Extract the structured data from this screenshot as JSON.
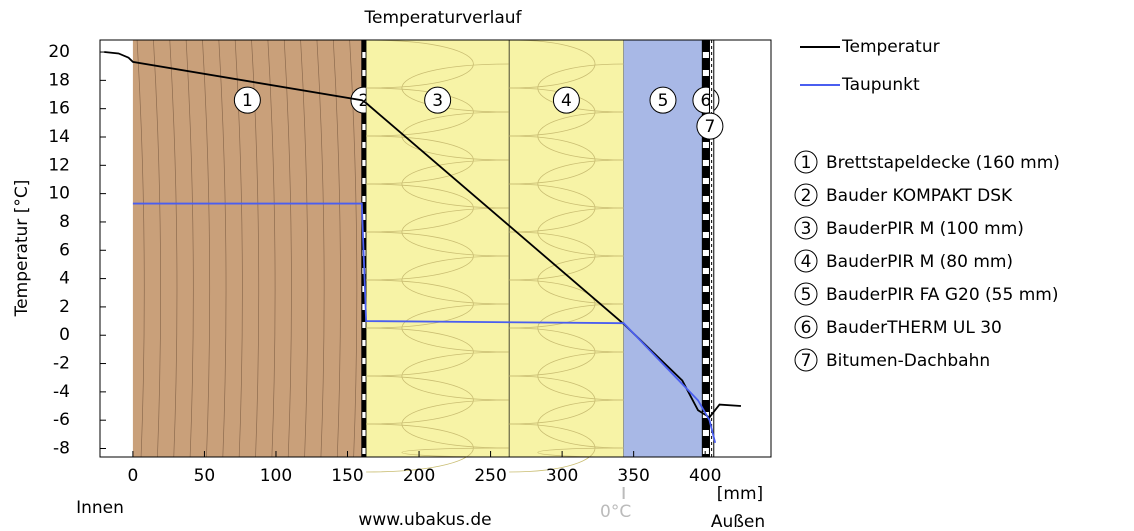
{
  "chart_data": {
    "type": "line",
    "title": "Temperaturverlauf",
    "y_label": "Temperatur [°C]",
    "x_unit": "[mm]",
    "inside_label": "Innen",
    "outside_label": "Außen",
    "footer": "www.ubakus.de",
    "zero_marker": {
      "text": "0°C",
      "x": 343
    },
    "xlim": [
      -23,
      446
    ],
    "ylim": [
      -8.6,
      20.85
    ],
    "xticks": [
      0,
      50,
      100,
      150,
      200,
      250,
      300,
      350,
      400
    ],
    "yticks": [
      -8,
      -6,
      -4,
      -2,
      0,
      2,
      4,
      6,
      8,
      10,
      12,
      14,
      16,
      18,
      20
    ],
    "series": [
      {
        "name": "Temperatur",
        "color": "#000000",
        "x": [
          -20,
          -10,
          -3,
          0,
          160,
          163,
          343,
          384,
          395,
          403,
          410,
          425
        ],
        "values": [
          20,
          19.9,
          19.6,
          19.3,
          16.6,
          16.4,
          0.8,
          -3.2,
          -5.3,
          -5.8,
          -4.9,
          -5.0
        ]
      },
      {
        "name": "Taupunkt",
        "color": "#4a5ef0",
        "x": [
          0,
          160,
          163,
          343,
          395,
          403,
          407
        ],
        "values": [
          9.3,
          9.3,
          1.0,
          0.85,
          -4.6,
          -6.0,
          -7.6
        ]
      }
    ],
    "layers": [
      {
        "label": "1",
        "name": "Brettstapeldecke (160 mm)",
        "x0": 0,
        "x1": 160,
        "color": "#c9a07a",
        "style": "solid"
      },
      {
        "label": "2",
        "name": "Bauder KOMPAKT DSK",
        "x0": 160,
        "x1": 163,
        "color": "#000000",
        "style": "dashed"
      },
      {
        "label": "3",
        "name": "BauderPIR M (100 mm)",
        "x0": 163,
        "x1": 263,
        "color": "#f7f3a6",
        "style": "solid"
      },
      {
        "label": "4",
        "name": "BauderPIR M (80 mm)",
        "x0": 263,
        "x1": 343,
        "color": "#f7f3a6",
        "style": "solid"
      },
      {
        "label": "5",
        "name": "BauderPIR FA G20 (55 mm)",
        "x0": 343,
        "x1": 398,
        "color": "#a8b8e6",
        "style": "solid"
      },
      {
        "label": "6",
        "name": "BauderTHERM UL 30",
        "x0": 398,
        "x1": 403,
        "color": "#000000",
        "style": "dashed"
      },
      {
        "label": "7",
        "name": "Bitumen-Dachbahn",
        "x0": 403,
        "x1": 406,
        "color": "#ffffff",
        "style": "dashed"
      }
    ]
  }
}
